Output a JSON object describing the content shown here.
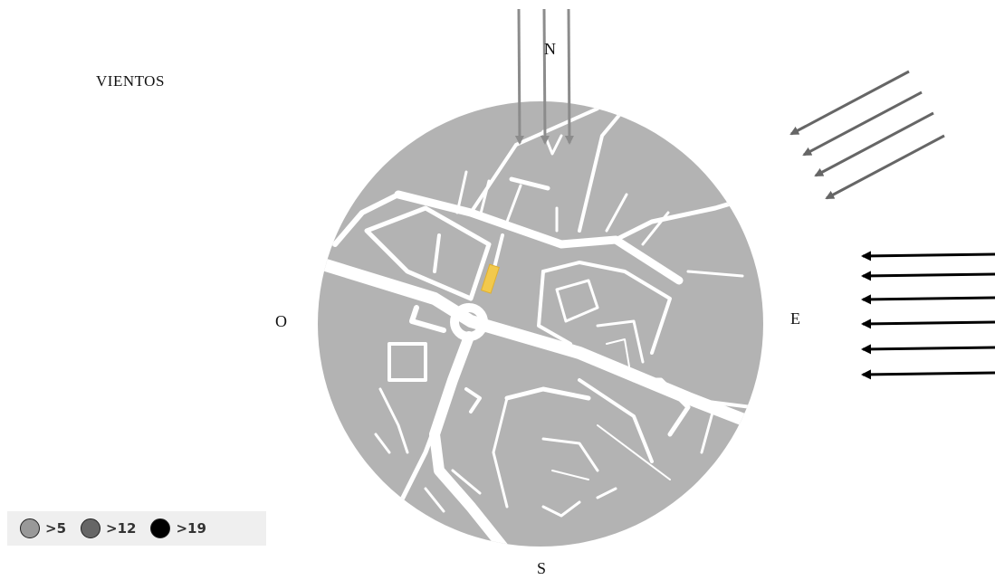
{
  "title": "VIENTOS",
  "compass": {
    "north": "N",
    "south": "S",
    "east": "E",
    "west": "O"
  },
  "legend": [
    {
      "label": ">5",
      "color": "#999999"
    },
    {
      "label": ">12",
      "color": "#666666"
    },
    {
      "label": ">19",
      "color": "#000000"
    }
  ],
  "map": {
    "circle_color": "#b3b3b3",
    "road_color": "#ffffff",
    "site_color": "#f2c94c"
  },
  "wind_arrows": {
    "north": {
      "count": 3,
      "color": "#8c8c8c",
      "speed_class": ">5"
    },
    "northeast": {
      "count": 4,
      "color": "#666666",
      "speed_class": ">12"
    },
    "east": {
      "count": 6,
      "color": "#000000",
      "speed_class": ">19"
    }
  }
}
